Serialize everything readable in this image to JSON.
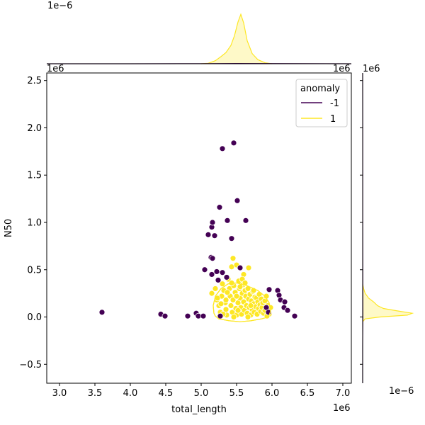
{
  "chart_data": {
    "type": "scatter",
    "xlabel": "total_length",
    "ylabel": "N50",
    "x_offset_label": "1e6",
    "y_offset_label": "1e6",
    "top_marginal_offset_label": "1e−6",
    "right_marginal_offset_label": "1e−6",
    "right_marginal_x_offset_label": "1e6",
    "top_marginal_y_offset_label": "1e6",
    "xlim": [
      2.82,
      7.12
    ],
    "ylim": [
      -0.7,
      2.58
    ],
    "xticks": [
      "3.0",
      "3.5",
      "4.0",
      "4.5",
      "5.0",
      "5.5",
      "6.0",
      "6.5",
      "7.0"
    ],
    "yticks": [
      "−0.5",
      "0.0",
      "0.5",
      "1.0",
      "1.5",
      "2.0",
      "2.5"
    ],
    "grid": false,
    "legend": {
      "title": "anomaly",
      "position": "top-right",
      "entries": [
        {
          "label": "-1",
          "color": "#440154"
        },
        {
          "label": "1",
          "color": "#fde725"
        }
      ]
    },
    "series": [
      {
        "name": "-1",
        "color": "#440154",
        "points": [
          [
            3.6,
            0.05
          ],
          [
            4.43,
            0.03
          ],
          [
            4.49,
            0.01
          ],
          [
            4.81,
            0.01
          ],
          [
            4.93,
            0.04
          ],
          [
            4.96,
            0.01
          ],
          [
            5.03,
            0.01
          ],
          [
            5.05,
            0.5
          ],
          [
            5.1,
            0.87
          ],
          [
            5.14,
            0.63
          ],
          [
            5.15,
            0.95
          ],
          [
            5.16,
            1.0
          ],
          [
            5.16,
            0.62
          ],
          [
            5.19,
            0.86
          ],
          [
            5.22,
            0.48
          ],
          [
            5.26,
            1.16
          ],
          [
            5.3,
            1.78
          ],
          [
            5.3,
            0.47
          ],
          [
            5.37,
            1.02
          ],
          [
            5.43,
            0.83
          ],
          [
            5.46,
            1.84
          ],
          [
            5.51,
            1.23
          ],
          [
            5.55,
            0.52
          ],
          [
            5.63,
            1.02
          ],
          [
            5.96,
            0.29
          ],
          [
            6.08,
            0.28
          ],
          [
            6.1,
            0.23
          ],
          [
            6.12,
            0.18
          ],
          [
            6.17,
            0.1
          ],
          [
            6.18,
            0.16
          ],
          [
            6.22,
            0.07
          ],
          [
            6.32,
            0.01
          ],
          [
            5.92,
            0.1
          ],
          [
            5.95,
            0.05
          ],
          [
            5.36,
            0.42
          ],
          [
            5.27,
            0.01
          ],
          [
            5.15,
            0.45
          ],
          [
            5.24,
            0.39
          ]
        ]
      },
      {
        "name": "1",
        "color": "#fde725",
        "points": [
          [
            5.45,
            0.62
          ],
          [
            5.43,
            0.53
          ],
          [
            5.5,
            0.55
          ],
          [
            5.67,
            0.52
          ],
          [
            5.15,
            0.25
          ],
          [
            5.2,
            0.3
          ],
          [
            5.22,
            0.18
          ],
          [
            5.25,
            0.12
          ],
          [
            5.27,
            0.05
          ],
          [
            5.29,
            0.22
          ],
          [
            5.3,
            0.35
          ],
          [
            5.32,
            0.28
          ],
          [
            5.34,
            0.15
          ],
          [
            5.35,
            0.08
          ],
          [
            5.36,
            0.02
          ],
          [
            5.38,
            0.4
          ],
          [
            5.4,
            0.3
          ],
          [
            5.41,
            0.22
          ],
          [
            5.42,
            0.12
          ],
          [
            5.44,
            0.05
          ],
          [
            5.45,
            0.18
          ],
          [
            5.46,
            0.33
          ],
          [
            5.48,
            0.26
          ],
          [
            5.49,
            0.09
          ],
          [
            5.5,
            0.02
          ],
          [
            5.52,
            0.15
          ],
          [
            5.53,
            0.38
          ],
          [
            5.54,
            0.3
          ],
          [
            5.55,
            0.2
          ],
          [
            5.56,
            0.1
          ],
          [
            5.57,
            0.03
          ],
          [
            5.58,
            0.25
          ],
          [
            5.59,
            0.34
          ],
          [
            5.6,
            0.16
          ],
          [
            5.61,
            0.07
          ],
          [
            5.62,
            0.28
          ],
          [
            5.63,
            0.22
          ],
          [
            5.64,
            0.12
          ],
          [
            5.65,
            0.04
          ],
          [
            5.66,
            0.3
          ],
          [
            5.67,
            0.19
          ],
          [
            5.68,
            0.1
          ],
          [
            5.69,
            0.24
          ],
          [
            5.7,
            0.02
          ],
          [
            5.71,
            0.17
          ],
          [
            5.72,
            0.08
          ],
          [
            5.73,
            0.27
          ],
          [
            5.74,
            0.14
          ],
          [
            5.75,
            0.05
          ],
          [
            5.76,
            0.21
          ],
          [
            5.77,
            0.11
          ],
          [
            5.78,
            0.2
          ],
          [
            5.79,
            0.03
          ],
          [
            5.8,
            0.16
          ],
          [
            5.81,
            0.09
          ],
          [
            5.82,
            0.24
          ],
          [
            5.83,
            0.13
          ],
          [
            5.84,
            0.06
          ],
          [
            5.85,
            0.19
          ],
          [
            5.86,
            0.1
          ],
          [
            5.87,
            0.15
          ],
          [
            5.88,
            0.04
          ],
          [
            5.9,
            0.17
          ],
          [
            5.92,
            0.22
          ],
          [
            5.94,
            0.12
          ],
          [
            5.96,
            0.03
          ],
          [
            5.98,
            0.1
          ],
          [
            5.9,
            0.07
          ],
          [
            5.93,
            0.01
          ],
          [
            5.6,
            0.45
          ],
          [
            5.58,
            0.4
          ],
          [
            5.35,
            0.18
          ],
          [
            5.28,
            0.14
          ],
          [
            5.46,
            0.0
          ],
          [
            5.66,
            0.0
          ],
          [
            5.31,
            0.03
          ],
          [
            5.37,
            0.26
          ],
          [
            5.52,
            0.07
          ],
          [
            5.74,
            0.28
          ],
          [
            5.43,
            0.36
          ],
          [
            5.55,
            0.32
          ],
          [
            5.23,
            0.2
          ],
          [
            5.62,
            0.36
          ],
          [
            5.7,
            0.12
          ],
          [
            5.5,
            0.22
          ]
        ]
      }
    ],
    "density_contour": {
      "series": "1",
      "color": "#fde725",
      "outline": [
        [
          5.2,
          0.01
        ],
        [
          5.25,
          -0.02
        ],
        [
          5.4,
          -0.04
        ],
        [
          5.55,
          -0.05
        ],
        [
          5.7,
          -0.04
        ],
        [
          5.85,
          -0.02
        ],
        [
          5.95,
          0.0
        ],
        [
          5.98,
          0.06
        ],
        [
          5.96,
          0.15
        ],
        [
          5.9,
          0.22
        ],
        [
          5.8,
          0.28
        ],
        [
          5.65,
          0.33
        ],
        [
          5.5,
          0.36
        ],
        [
          5.38,
          0.35
        ],
        [
          5.28,
          0.3
        ],
        [
          5.2,
          0.22
        ],
        [
          5.17,
          0.12
        ],
        [
          5.18,
          0.04
        ]
      ]
    },
    "marginal_top": {
      "orientation": "horizontal",
      "series": [
        {
          "name": "1",
          "color": "#fde725",
          "curve": [
            [
              5.0,
              0.0
            ],
            [
              5.1,
              0.01
            ],
            [
              5.2,
              0.06
            ],
            [
              5.28,
              0.14
            ],
            [
              5.35,
              0.22
            ],
            [
              5.42,
              0.36
            ],
            [
              5.47,
              0.55
            ],
            [
              5.52,
              0.82
            ],
            [
              5.56,
              0.97
            ],
            [
              5.6,
              0.8
            ],
            [
              5.65,
              0.45
            ],
            [
              5.72,
              0.2
            ],
            [
              5.8,
              0.08
            ],
            [
              5.9,
              0.02
            ],
            [
              6.0,
              0.0
            ]
          ]
        },
        {
          "name": "-1",
          "color": "#440154",
          "curve": [
            [
              2.82,
              0.0
            ],
            [
              4.0,
              0.0
            ],
            [
              5.0,
              0.003
            ],
            [
              5.5,
              0.006
            ],
            [
              6.0,
              0.004
            ],
            [
              7.12,
              0.0
            ]
          ]
        }
      ]
    },
    "marginal_right": {
      "orientation": "vertical",
      "series": [
        {
          "name": "1",
          "color": "#fde725",
          "curve": [
            [
              -0.05,
              0.0
            ],
            [
              -0.02,
              0.05
            ],
            [
              0.0,
              0.35
            ],
            [
              0.02,
              0.9
            ],
            [
              0.04,
              1.0
            ],
            [
              0.06,
              0.75
            ],
            [
              0.09,
              0.42
            ],
            [
              0.12,
              0.3
            ],
            [
              0.16,
              0.22
            ],
            [
              0.2,
              0.12
            ],
            [
              0.25,
              0.05
            ],
            [
              0.3,
              0.02
            ],
            [
              0.35,
              0.0
            ]
          ]
        },
        {
          "name": "-1",
          "color": "#440154",
          "curve": [
            [
              -0.7,
              0.0
            ],
            [
              -0.3,
              0.0
            ],
            [
              0.0,
              0.004
            ],
            [
              0.5,
              0.003
            ],
            [
              1.0,
              0.002
            ],
            [
              2.0,
              0.001
            ],
            [
              2.58,
              0.0
            ]
          ]
        }
      ]
    }
  }
}
